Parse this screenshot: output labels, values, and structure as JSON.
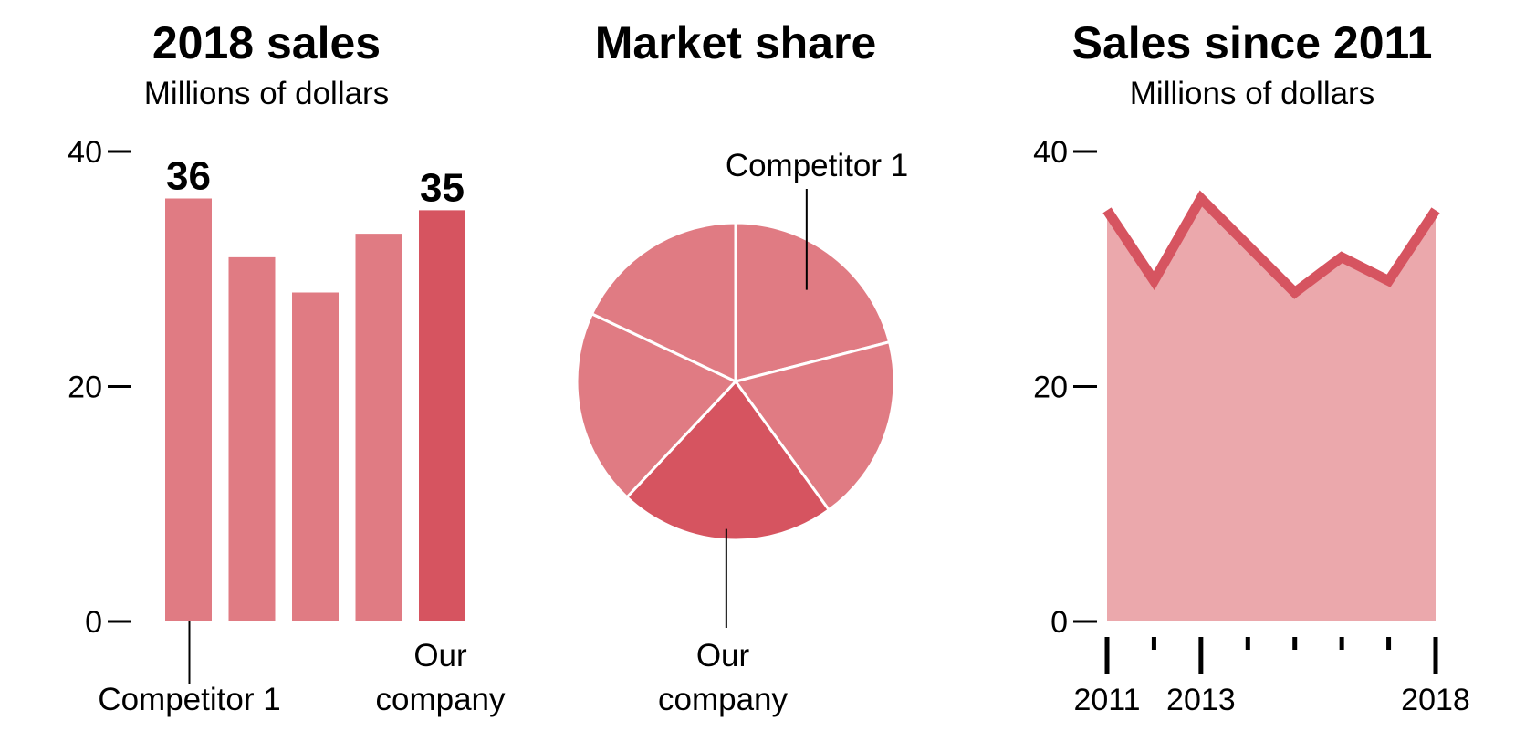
{
  "colors": {
    "bar": "#e07b83",
    "highlight": "#d65460",
    "area": "#eba8ac",
    "line": "#d65460"
  },
  "chart_data": [
    {
      "type": "bar",
      "title": "2018 sales",
      "subtitle": "Millions of dollars",
      "ylim": [
        0,
        40
      ],
      "yticks": [
        "0",
        "20",
        "40"
      ],
      "values": [
        36,
        31,
        28,
        33,
        35
      ],
      "highlight_index": 4,
      "value_labels": [
        {
          "index": 0,
          "text": "36"
        },
        {
          "index": 4,
          "text": "35"
        }
      ],
      "annotations": [
        {
          "index": 0,
          "lines": [
            "Competitor 1"
          ]
        },
        {
          "index": 4,
          "lines": [
            "Our",
            "company"
          ]
        }
      ]
    },
    {
      "type": "pie",
      "title": "Market share",
      "values": [
        21,
        19,
        22,
        20,
        18
      ],
      "highlight_index": 2,
      "annotations": [
        {
          "index": 0,
          "lines": [
            "Competitor 1"
          ]
        },
        {
          "index": 2,
          "lines": [
            "Our",
            "company"
          ]
        }
      ]
    },
    {
      "type": "area",
      "title": "Sales since 2011",
      "subtitle": "Millions of dollars",
      "ylim": [
        0,
        40
      ],
      "yticks": [
        "0",
        "20",
        "40"
      ],
      "x": [
        2011,
        2012,
        2013,
        2014,
        2015,
        2016,
        2017,
        2018
      ],
      "values": [
        35,
        29,
        36,
        32,
        28,
        31,
        29,
        35
      ],
      "xtick_labels": [
        "2011",
        "2013",
        "2018"
      ]
    }
  ]
}
